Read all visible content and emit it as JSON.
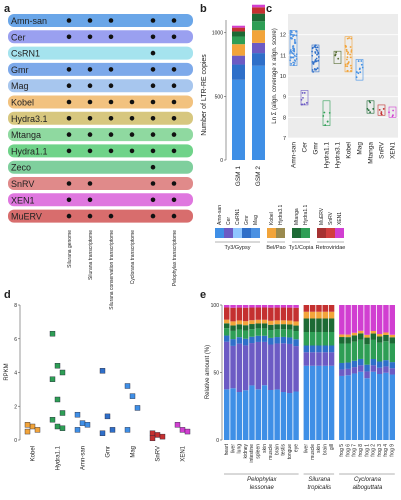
{
  "figure_panels": {
    "a": {
      "label": "a"
    },
    "b": {
      "label": "b"
    },
    "c": {
      "label": "c"
    },
    "d": {
      "label": "d"
    },
    "e": {
      "label": "e"
    }
  },
  "chart_data": [
    {
      "panel": "a",
      "type": "table",
      "rows": [
        {
          "name": "Amn-san",
          "color": "#6aa6e8",
          "dots": [
            1,
            1,
            1,
            0,
            1,
            1
          ]
        },
        {
          "name": "Cer",
          "color": "#9aa0f0",
          "dots": [
            1,
            1,
            1,
            0,
            1,
            1
          ]
        },
        {
          "name": "CsRN1",
          "color": "#a5e3ee",
          "dots": [
            0,
            0,
            0,
            0,
            1,
            0
          ]
        },
        {
          "name": "Gmr",
          "color": "#7da9ea",
          "dots": [
            1,
            1,
            1,
            0,
            1,
            1
          ]
        },
        {
          "name": "Mag",
          "color": "#a7c6ee",
          "dots": [
            1,
            1,
            1,
            0,
            1,
            1
          ]
        },
        {
          "name": "Kobel",
          "color": "#f2c27f",
          "dots": [
            1,
            1,
            1,
            1,
            1,
            1
          ]
        },
        {
          "name": "Hydra3.1",
          "color": "#d7c77f",
          "dots": [
            1,
            1,
            1,
            1,
            1,
            1
          ]
        },
        {
          "name": "Mtanga",
          "color": "#8fd9a0",
          "dots": [
            1,
            1,
            1,
            1,
            1,
            1
          ]
        },
        {
          "name": "Hydra1.1",
          "color": "#6fd389",
          "dots": [
            1,
            1,
            1,
            1,
            1,
            1
          ]
        },
        {
          "name": "Zeco",
          "color": "#7fcf9d",
          "dots": [
            0,
            0,
            0,
            0,
            1,
            0
          ]
        },
        {
          "name": "SnRV",
          "color": "#e08a8a",
          "dots": [
            1,
            1,
            0,
            0,
            1,
            1
          ]
        },
        {
          "name": "XEN1",
          "color": "#df77df",
          "dots": [
            1,
            1,
            0,
            0,
            1,
            1
          ]
        },
        {
          "name": "MuERV",
          "color": "#d86d6d",
          "dots": [
            1,
            1,
            1,
            0,
            1,
            1
          ]
        }
      ],
      "columns": [
        "Silurana genome",
        "Silurana transcriptome",
        "Silurana conservation transcriptome",
        "Cyclorana transcriptome",
        "",
        "Pelophylax transcriptome"
      ]
    },
    {
      "panel": "b",
      "type": "bar",
      "ylabel": "Number of LTR-RE copies",
      "ylim": [
        0,
        1100
      ],
      "yticks": [
        "0",
        "500",
        "1000"
      ],
      "categories": [
        "GSM 1",
        "GSM 2"
      ],
      "series": [
        {
          "color": "#3f8fe6",
          "values": [
            630,
            740
          ]
        },
        {
          "color": "#2f6fc9",
          "values": [
            120,
            100
          ]
        },
        {
          "color": "#6c5bc4",
          "values": [
            70,
            80
          ]
        },
        {
          "color": "#f2a43a",
          "values": [
            90,
            100
          ]
        },
        {
          "color": "#2e9e55",
          "values": [
            60,
            70
          ]
        },
        {
          "color": "#1d6a35",
          "values": [
            40,
            60
          ]
        },
        {
          "color": "#c43030",
          "values": [
            30,
            50
          ]
        },
        {
          "color": "#d13fd1",
          "values": [
            15,
            20
          ]
        }
      ]
    },
    {
      "panel": "c",
      "type": "scatter",
      "ylabel": "Ln Σ (align. coverage x align. score)",
      "ylim": [
        7,
        13
      ],
      "yticks": [
        "7",
        "8",
        "9",
        "10",
        "11",
        "12"
      ],
      "categories": [
        "Amn-san",
        "Cer",
        "Gmr",
        "Hydra1.1",
        "Hydra3.1",
        "Kobel",
        "Mag",
        "Mtanga",
        "SnRV",
        "XEN1"
      ],
      "colors": [
        "#4a90e2",
        "#6c5bc4",
        "#2f6fc9",
        "#2e9e55",
        "#556b2f",
        "#f2a43a",
        "#3f8fe6",
        "#1d6a35",
        "#c43030",
        "#d13fd1"
      ]
    },
    {
      "panel": "d",
      "type": "scatter",
      "ylabel": "RPKM",
      "ylim": [
        0,
        8
      ],
      "yticks": [
        "0",
        "2",
        "4",
        "6",
        "8"
      ],
      "categories": [
        "Kobel",
        "Hydra1.1",
        "Amn-san",
        "Gmr",
        "Mag",
        "SnRV",
        "XEN1"
      ],
      "colors": [
        "#f2a43a",
        "#2e9e55",
        "#3f8fe6",
        "#2f6fc9",
        "#3f8fe6",
        "#c43030",
        "#d13fd1"
      ]
    },
    {
      "panel": "e",
      "type": "bar",
      "ylabel": "Relative amount (%)",
      "ylim": [
        0,
        100
      ],
      "yticks": [
        "0",
        "50",
        "100"
      ],
      "groups": [
        {
          "name": "Pelophylax lessonae",
          "categories": [
            "heart",
            "liver",
            "lung",
            "kidney",
            "intestine",
            "spleen",
            "skin",
            "muscle",
            "brain",
            "testis",
            "tongue",
            "eye"
          ]
        },
        {
          "name": "Silurana tropicalis",
          "categories": [
            "liver",
            "muscle",
            "skin",
            "brain",
            "gill"
          ]
        },
        {
          "name": "Cyclorana alboguttata",
          "categories": [
            "frog 5",
            "frog 6",
            "frog 7",
            "frog 8",
            "frog 1",
            "frog 2",
            "frog 3",
            "frog 4",
            "frog 9"
          ]
        }
      ]
    }
  ],
  "legend": {
    "groups": [
      {
        "name": "Ty3/Gypsy",
        "items": [
          "Amn-san",
          "Cer",
          "CsRN1",
          "Gmr",
          "Mag"
        ],
        "colors": [
          "#3f8fe6",
          "#6c5bc4",
          "#8fc6ff",
          "#2f6fc9",
          "#4a90e2"
        ]
      },
      {
        "name": "Bel/Pao",
        "items": [
          "Kobel",
          "Hydra3.1"
        ],
        "colors": [
          "#f2a43a",
          "#9a8a4e"
        ]
      },
      {
        "name": "Ty1/Copia",
        "items": [
          "Mtanga",
          "Hydra1.1"
        ],
        "colors": [
          "#1d6a35",
          "#2e9e55"
        ]
      },
      {
        "name": "Retroviridae",
        "items": [
          "MuERV",
          "SnRV",
          "XEN1"
        ],
        "colors": [
          "#a63232",
          "#d13f3f",
          "#d13fd1"
        ]
      }
    ]
  }
}
